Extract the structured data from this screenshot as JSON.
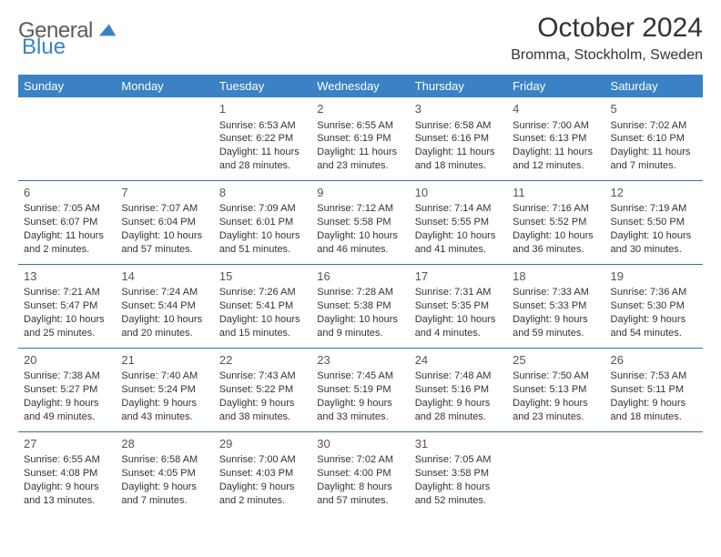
{
  "logo": {
    "general": "General",
    "blue": "Blue",
    "accent_color": "#3b82c4"
  },
  "header": {
    "month_title": "October 2024",
    "location": "Bromma, Stockholm, Sweden"
  },
  "colors": {
    "header_bg": "#3b82c4",
    "header_text": "#ffffff",
    "border": "#3b6ea5",
    "text": "#333333"
  },
  "dayNames": [
    "Sunday",
    "Monday",
    "Tuesday",
    "Wednesday",
    "Thursday",
    "Friday",
    "Saturday"
  ],
  "weeks": [
    [
      null,
      null,
      {
        "n": "1",
        "sunrise": "Sunrise: 6:53 AM",
        "sunset": "Sunset: 6:22 PM",
        "daylight": "Daylight: 11 hours and 28 minutes."
      },
      {
        "n": "2",
        "sunrise": "Sunrise: 6:55 AM",
        "sunset": "Sunset: 6:19 PM",
        "daylight": "Daylight: 11 hours and 23 minutes."
      },
      {
        "n": "3",
        "sunrise": "Sunrise: 6:58 AM",
        "sunset": "Sunset: 6:16 PM",
        "daylight": "Daylight: 11 hours and 18 minutes."
      },
      {
        "n": "4",
        "sunrise": "Sunrise: 7:00 AM",
        "sunset": "Sunset: 6:13 PM",
        "daylight": "Daylight: 11 hours and 12 minutes."
      },
      {
        "n": "5",
        "sunrise": "Sunrise: 7:02 AM",
        "sunset": "Sunset: 6:10 PM",
        "daylight": "Daylight: 11 hours and 7 minutes."
      }
    ],
    [
      {
        "n": "6",
        "sunrise": "Sunrise: 7:05 AM",
        "sunset": "Sunset: 6:07 PM",
        "daylight": "Daylight: 11 hours and 2 minutes."
      },
      {
        "n": "7",
        "sunrise": "Sunrise: 7:07 AM",
        "sunset": "Sunset: 6:04 PM",
        "daylight": "Daylight: 10 hours and 57 minutes."
      },
      {
        "n": "8",
        "sunrise": "Sunrise: 7:09 AM",
        "sunset": "Sunset: 6:01 PM",
        "daylight": "Daylight: 10 hours and 51 minutes."
      },
      {
        "n": "9",
        "sunrise": "Sunrise: 7:12 AM",
        "sunset": "Sunset: 5:58 PM",
        "daylight": "Daylight: 10 hours and 46 minutes."
      },
      {
        "n": "10",
        "sunrise": "Sunrise: 7:14 AM",
        "sunset": "Sunset: 5:55 PM",
        "daylight": "Daylight: 10 hours and 41 minutes."
      },
      {
        "n": "11",
        "sunrise": "Sunrise: 7:16 AM",
        "sunset": "Sunset: 5:52 PM",
        "daylight": "Daylight: 10 hours and 36 minutes."
      },
      {
        "n": "12",
        "sunrise": "Sunrise: 7:19 AM",
        "sunset": "Sunset: 5:50 PM",
        "daylight": "Daylight: 10 hours and 30 minutes."
      }
    ],
    [
      {
        "n": "13",
        "sunrise": "Sunrise: 7:21 AM",
        "sunset": "Sunset: 5:47 PM",
        "daylight": "Daylight: 10 hours and 25 minutes."
      },
      {
        "n": "14",
        "sunrise": "Sunrise: 7:24 AM",
        "sunset": "Sunset: 5:44 PM",
        "daylight": "Daylight: 10 hours and 20 minutes."
      },
      {
        "n": "15",
        "sunrise": "Sunrise: 7:26 AM",
        "sunset": "Sunset: 5:41 PM",
        "daylight": "Daylight: 10 hours and 15 minutes."
      },
      {
        "n": "16",
        "sunrise": "Sunrise: 7:28 AM",
        "sunset": "Sunset: 5:38 PM",
        "daylight": "Daylight: 10 hours and 9 minutes."
      },
      {
        "n": "17",
        "sunrise": "Sunrise: 7:31 AM",
        "sunset": "Sunset: 5:35 PM",
        "daylight": "Daylight: 10 hours and 4 minutes."
      },
      {
        "n": "18",
        "sunrise": "Sunrise: 7:33 AM",
        "sunset": "Sunset: 5:33 PM",
        "daylight": "Daylight: 9 hours and 59 minutes."
      },
      {
        "n": "19",
        "sunrise": "Sunrise: 7:36 AM",
        "sunset": "Sunset: 5:30 PM",
        "daylight": "Daylight: 9 hours and 54 minutes."
      }
    ],
    [
      {
        "n": "20",
        "sunrise": "Sunrise: 7:38 AM",
        "sunset": "Sunset: 5:27 PM",
        "daylight": "Daylight: 9 hours and 49 minutes."
      },
      {
        "n": "21",
        "sunrise": "Sunrise: 7:40 AM",
        "sunset": "Sunset: 5:24 PM",
        "daylight": "Daylight: 9 hours and 43 minutes."
      },
      {
        "n": "22",
        "sunrise": "Sunrise: 7:43 AM",
        "sunset": "Sunset: 5:22 PM",
        "daylight": "Daylight: 9 hours and 38 minutes."
      },
      {
        "n": "23",
        "sunrise": "Sunrise: 7:45 AM",
        "sunset": "Sunset: 5:19 PM",
        "daylight": "Daylight: 9 hours and 33 minutes."
      },
      {
        "n": "24",
        "sunrise": "Sunrise: 7:48 AM",
        "sunset": "Sunset: 5:16 PM",
        "daylight": "Daylight: 9 hours and 28 minutes."
      },
      {
        "n": "25",
        "sunrise": "Sunrise: 7:50 AM",
        "sunset": "Sunset: 5:13 PM",
        "daylight": "Daylight: 9 hours and 23 minutes."
      },
      {
        "n": "26",
        "sunrise": "Sunrise: 7:53 AM",
        "sunset": "Sunset: 5:11 PM",
        "daylight": "Daylight: 9 hours and 18 minutes."
      }
    ],
    [
      {
        "n": "27",
        "sunrise": "Sunrise: 6:55 AM",
        "sunset": "Sunset: 4:08 PM",
        "daylight": "Daylight: 9 hours and 13 minutes."
      },
      {
        "n": "28",
        "sunrise": "Sunrise: 6:58 AM",
        "sunset": "Sunset: 4:05 PM",
        "daylight": "Daylight: 9 hours and 7 minutes."
      },
      {
        "n": "29",
        "sunrise": "Sunrise: 7:00 AM",
        "sunset": "Sunset: 4:03 PM",
        "daylight": "Daylight: 9 hours and 2 minutes."
      },
      {
        "n": "30",
        "sunrise": "Sunrise: 7:02 AM",
        "sunset": "Sunset: 4:00 PM",
        "daylight": "Daylight: 8 hours and 57 minutes."
      },
      {
        "n": "31",
        "sunrise": "Sunrise: 7:05 AM",
        "sunset": "Sunset: 3:58 PM",
        "daylight": "Daylight: 8 hours and 52 minutes."
      },
      null,
      null
    ]
  ]
}
